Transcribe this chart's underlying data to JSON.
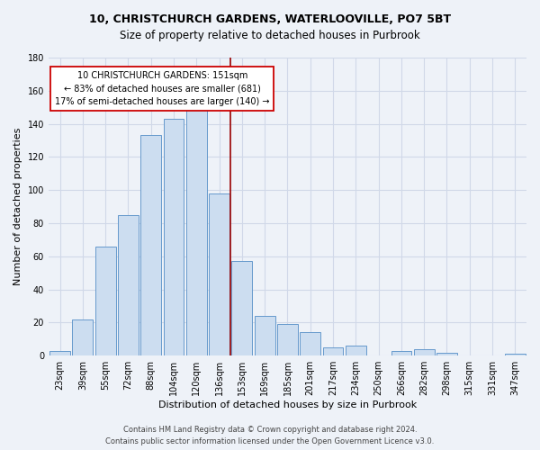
{
  "title": "10, CHRISTCHURCH GARDENS, WATERLOOVILLE, PO7 5BT",
  "subtitle": "Size of property relative to detached houses in Purbrook",
  "xlabel": "Distribution of detached houses by size in Purbrook",
  "ylabel": "Number of detached properties",
  "bar_labels": [
    "23sqm",
    "39sqm",
    "55sqm",
    "72sqm",
    "88sqm",
    "104sqm",
    "120sqm",
    "136sqm",
    "153sqm",
    "169sqm",
    "185sqm",
    "201sqm",
    "217sqm",
    "234sqm",
    "250sqm",
    "266sqm",
    "282sqm",
    "298sqm",
    "315sqm",
    "331sqm",
    "347sqm"
  ],
  "bar_values": [
    3,
    22,
    66,
    85,
    133,
    143,
    150,
    98,
    57,
    24,
    19,
    14,
    5,
    6,
    0,
    3,
    4,
    2,
    0,
    0,
    1
  ],
  "bar_color": "#ccddf0",
  "bar_edge_color": "#6699cc",
  "vline_x_index": 8,
  "vline_color": "#990000",
  "ylim": [
    0,
    180
  ],
  "yticks": [
    0,
    20,
    40,
    60,
    80,
    100,
    120,
    140,
    160,
    180
  ],
  "annotation_title": "10 CHRISTCHURCH GARDENS: 151sqm",
  "annotation_line1": "← 83% of detached houses are smaller (681)",
  "annotation_line2": "17% of semi-detached houses are larger (140) →",
  "annotation_box_color": "#ffffff",
  "annotation_box_edge": "#cc0000",
  "footer1": "Contains HM Land Registry data © Crown copyright and database right 2024.",
  "footer2": "Contains public sector information licensed under the Open Government Licence v3.0.",
  "background_color": "#eef2f8",
  "grid_color": "#d0d8e8",
  "title_fontsize": 9,
  "subtitle_fontsize": 8.5,
  "axis_label_fontsize": 8,
  "tick_fontsize": 7,
  "annotation_fontsize": 7,
  "footer_fontsize": 6
}
